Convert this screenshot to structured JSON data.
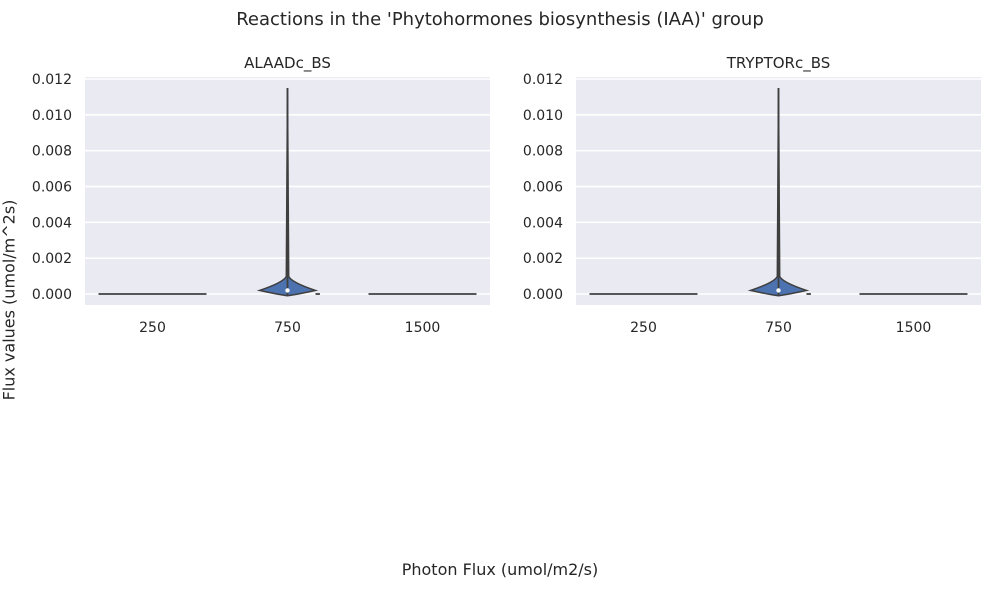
{
  "suptitle": "Reactions in the 'Phytohormones biosynthesis (IAA)' group",
  "ylabel": "Flux values (umol/m^2s)",
  "xlabel": "Photon Flux (umol/m2/s)",
  "colors": {
    "plot_background": "#EAEAF2",
    "grid": "#FFFFFF",
    "violin_fill": "#4C72B0",
    "line": "#3F3F3F",
    "text": "#262626"
  },
  "chart_data": [
    {
      "type": "violin",
      "title": "ALAADc_BS",
      "categories": [
        "250",
        "750",
        "1500"
      ],
      "ylim": [
        -0.0006,
        0.0121
      ],
      "yticks": [
        0.0,
        0.002,
        0.004,
        0.006,
        0.008,
        0.01,
        0.012
      ],
      "ytick_labels": [
        "0.000",
        "0.002",
        "0.004",
        "0.006",
        "0.008",
        "0.010",
        "0.012"
      ],
      "grid": true,
      "series": [
        {
          "category": "250",
          "min": 0.0,
          "max": 0.0,
          "median": 0.0
        },
        {
          "category": "750",
          "min": -0.0001,
          "max": 0.0115,
          "median": 0.0002
        },
        {
          "category": "1500",
          "min": 0.0,
          "max": 0.0,
          "median": 0.0
        }
      ]
    },
    {
      "type": "violin",
      "title": "TRYPTORc_BS",
      "categories": [
        "250",
        "750",
        "1500"
      ],
      "ylim": [
        -0.0006,
        0.0121
      ],
      "yticks": [
        0.0,
        0.002,
        0.004,
        0.006,
        0.008,
        0.01,
        0.012
      ],
      "ytick_labels": [
        "0.000",
        "0.002",
        "0.004",
        "0.006",
        "0.008",
        "0.010",
        "0.012"
      ],
      "grid": true,
      "series": [
        {
          "category": "250",
          "min": 0.0,
          "max": 0.0,
          "median": 0.0
        },
        {
          "category": "750",
          "min": -0.0001,
          "max": 0.0115,
          "median": 0.0002
        },
        {
          "category": "1500",
          "min": 0.0,
          "max": 0.0,
          "median": 0.0
        }
      ]
    }
  ]
}
